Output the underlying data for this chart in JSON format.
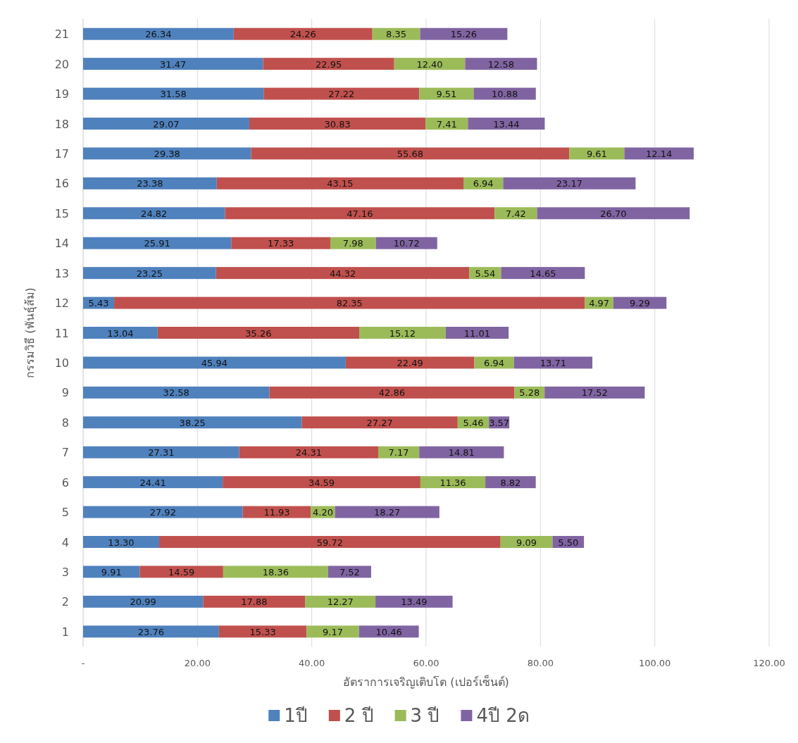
{
  "chart_data": {
    "type": "bar",
    "orientation": "horizontal",
    "stacked": true,
    "xlabel": "อัตราการเจริญเติบโต (เปอร์เซ็นต์)",
    "ylabel": "กรรมวิธี (พันธุ์ส้ม)",
    "categories": [
      "21",
      "20",
      "19",
      "18",
      "17",
      "16",
      "15",
      "14",
      "13",
      "12",
      "11",
      "10",
      "9",
      "8",
      "7",
      "6",
      "5",
      "4",
      "3",
      "2",
      "1"
    ],
    "series": [
      {
        "name": "1ปี",
        "color": "#4f81bd",
        "values": [
          26.34,
          31.47,
          31.58,
          29.07,
          29.38,
          23.38,
          24.82,
          25.91,
          23.25,
          5.43,
          13.04,
          45.94,
          32.58,
          38.25,
          27.31,
          24.41,
          27.92,
          13.3,
          9.91,
          20.99,
          23.76
        ],
        "value_labels": [
          "26.34",
          "31.47",
          "31.58",
          "29.07",
          "29.38",
          "23.38",
          "24.82",
          "25.91",
          "23.25",
          "5.43",
          "13.04",
          "45.94",
          "32.58",
          "38.25",
          "27.31",
          "24.41",
          "27.92",
          "13.30",
          "9.91",
          "20.99",
          "23.76"
        ]
      },
      {
        "name": "2 ปี",
        "color": "#c0504d",
        "values": [
          24.26,
          22.95,
          27.22,
          30.83,
          55.68,
          43.15,
          47.16,
          17.33,
          44.32,
          82.35,
          35.26,
          22.49,
          42.86,
          27.27,
          24.31,
          34.59,
          11.93,
          59.72,
          14.59,
          17.88,
          15.33
        ],
        "value_labels": [
          "24.26",
          "22.95",
          "27.22",
          "30.83",
          "55.68",
          "43.15",
          "47.16",
          "17.33",
          "44.32",
          "82.35",
          "35.26",
          "22.49",
          "42.86",
          "27.27",
          "24.31",
          "34.59",
          "11.93",
          "59.72",
          "14.59",
          "17.88",
          "15.33"
        ]
      },
      {
        "name": "3 ปี",
        "color": "#9bbb59",
        "values": [
          8.35,
          12.4,
          9.51,
          7.41,
          9.61,
          6.94,
          7.42,
          7.98,
          5.54,
          4.97,
          15.12,
          6.94,
          5.28,
          5.46,
          7.17,
          11.36,
          4.2,
          9.09,
          18.36,
          12.27,
          9.17
        ],
        "value_labels": [
          "8.35",
          "12.40",
          "9.51",
          "7.41",
          "9.61",
          "6.94",
          "7.42",
          "7.98",
          "5.54",
          "4.97",
          "15.12",
          "6.94",
          "5.28",
          "5.46",
          "7.17",
          "11.36",
          "4.20",
          "9.09",
          "18.36",
          "12.27",
          "9.17"
        ]
      },
      {
        "name": "4ปี 2ด",
        "color": "#8064a2",
        "values": [
          15.26,
          12.58,
          10.88,
          13.44,
          12.14,
          23.17,
          26.7,
          10.72,
          14.65,
          9.29,
          11.01,
          13.71,
          17.52,
          3.57,
          14.81,
          8.82,
          18.27,
          5.5,
          7.52,
          13.49,
          10.46
        ],
        "value_labels": [
          "15.26",
          "12.58",
          "10.88",
          "13.44",
          "12.14",
          "23.17",
          "26.70",
          "10.72",
          "14.65",
          "9.29",
          "11.01",
          "13.71",
          "17.52",
          "3.57",
          "14.81",
          "8.82",
          "18.27",
          "5.50",
          "7.52",
          "13.49",
          "10.46"
        ]
      }
    ],
    "xlim": [
      0,
      120
    ],
    "xticks": [
      {
        "value": 0,
        "label": "-"
      },
      {
        "value": 20,
        "label": "20.00"
      },
      {
        "value": 40,
        "label": "40.00"
      },
      {
        "value": 60,
        "label": "60.00"
      },
      {
        "value": 80,
        "label": "80.00"
      },
      {
        "value": 100,
        "label": "100.00"
      },
      {
        "value": 120,
        "label": "120.00"
      }
    ],
    "grid": "x",
    "legend": "bottom"
  }
}
